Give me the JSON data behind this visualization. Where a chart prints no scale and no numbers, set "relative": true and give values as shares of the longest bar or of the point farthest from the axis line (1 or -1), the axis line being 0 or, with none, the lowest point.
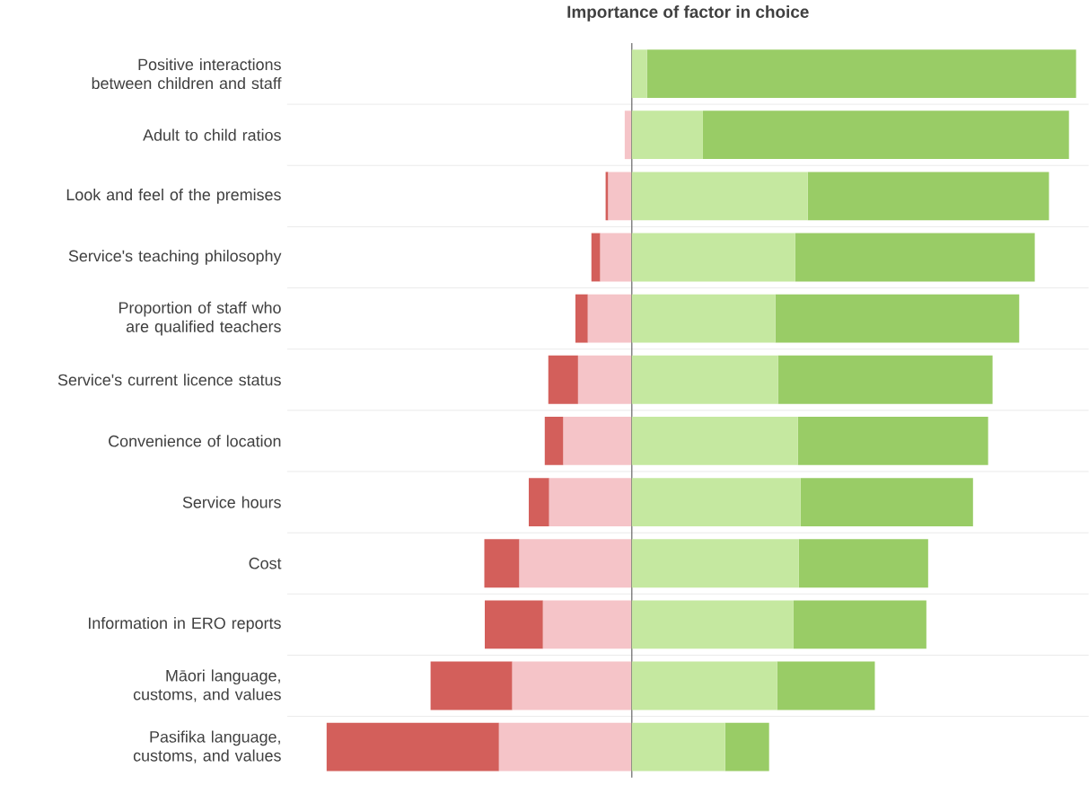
{
  "chart_data": {
    "type": "bar",
    "orientation": "horizontal",
    "stacked": true,
    "relative": true,
    "grid": "y",
    "title": "Importance of factor in choice",
    "categories": [
      "Positive interactions between children and staff",
      "Adult to child ratios",
      "Look and feel of the premises",
      "Service's teaching philosophy",
      "Proportion of staff who are qualified teachers",
      "Service's current licence status",
      "Convenience of location",
      "Service hours",
      "Cost",
      "Information in ERO reports",
      "Māori language, customs, and values",
      "Pasifika language, customs, and values"
    ],
    "series": [
      {
        "color": "#f5c4c8",
        "values": [
          0,
          -0.016,
          -0.053,
          -0.071,
          -0.099,
          -0.121,
          -0.154,
          -0.186,
          -0.253,
          -0.2,
          -0.269,
          -0.299
        ]
      },
      {
        "color": "#d35f5b",
        "values": [
          0,
          0,
          -0.006,
          -0.02,
          -0.028,
          -0.067,
          -0.042,
          -0.046,
          -0.079,
          -0.131,
          -0.184,
          -0.388
        ]
      },
      {
        "color": "#c5e8a0",
        "values": [
          0.034,
          0.16,
          0.396,
          0.368,
          0.323,
          0.329,
          0.374,
          0.38,
          0.376,
          0.364,
          0.327,
          0.21
        ]
      },
      {
        "color": "#99cc66",
        "values": [
          0.966,
          0.824,
          0.543,
          0.539,
          0.549,
          0.483,
          0.428,
          0.388,
          0.291,
          0.299,
          0.22,
          0.099
        ]
      }
    ]
  }
}
